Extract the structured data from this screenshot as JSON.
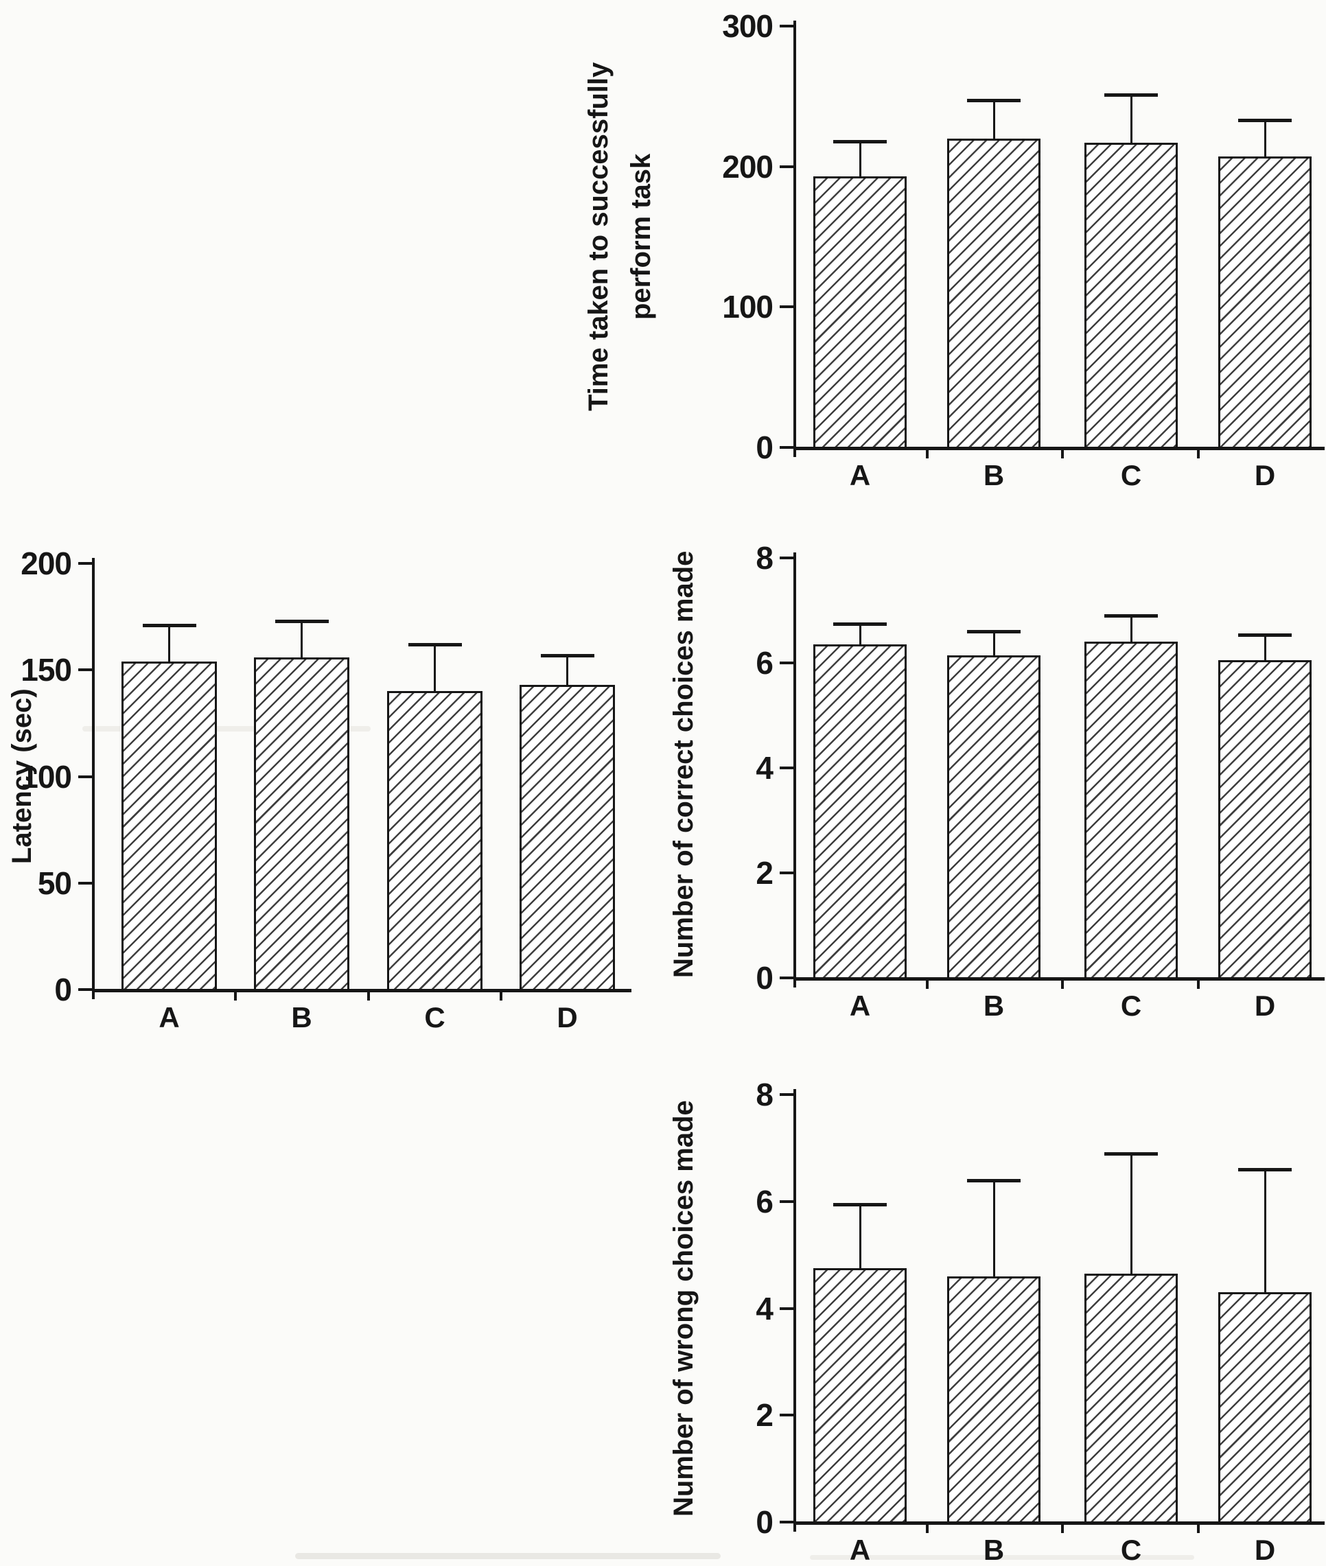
{
  "figure": {
    "background": "#fbfbf9",
    "ink": "#161616",
    "bar_fill": "white with black diagonal hatch",
    "error_bars": "upper-only with horizontal caps",
    "grid": false,
    "legend": "none"
  },
  "chart_data": [
    {
      "id": "time_taken",
      "type": "bar",
      "ylabel": "Time taken to successfully perform task",
      "ylabel_lines": [
        "Time taken to successfully",
        "perform task"
      ],
      "xlabel": "",
      "categories": [
        "A",
        "B",
        "C",
        "D"
      ],
      "values": [
        193,
        220,
        217,
        207
      ],
      "errors_plus": [
        25,
        27,
        34,
        26
      ],
      "ylim": [
        0,
        300
      ],
      "yticks": [
        0,
        100,
        200,
        300
      ],
      "grid": false,
      "legend": "none"
    },
    {
      "id": "latency",
      "type": "bar",
      "ylabel": "Latency (sec)",
      "xlabel": "",
      "categories": [
        "A",
        "B",
        "C",
        "D"
      ],
      "values": [
        154,
        156,
        140,
        143
      ],
      "errors_plus": [
        17,
        17,
        22,
        14
      ],
      "ylim": [
        0,
        200
      ],
      "yticks": [
        0,
        50,
        100,
        150,
        200
      ],
      "grid": false,
      "legend": "none"
    },
    {
      "id": "correct_choices",
      "type": "bar",
      "ylabel": "Number of correct choices made",
      "xlabel": "",
      "categories": [
        "A",
        "B",
        "C",
        "D"
      ],
      "values": [
        6.35,
        6.15,
        6.4,
        6.05
      ],
      "errors_plus": [
        0.4,
        0.45,
        0.5,
        0.48
      ],
      "ylim": [
        0,
        8
      ],
      "yticks": [
        0,
        2,
        4,
        6,
        8
      ],
      "grid": false,
      "legend": "none"
    },
    {
      "id": "wrong_choices",
      "type": "bar",
      "ylabel": "Number of wrong choices made",
      "xlabel": "",
      "categories": [
        "A",
        "B",
        "C",
        "D"
      ],
      "values": [
        4.75,
        4.6,
        4.65,
        4.3
      ],
      "errors_plus": [
        1.2,
        1.8,
        2.25,
        2.3
      ],
      "ylim": [
        0,
        8
      ],
      "yticks": [
        0,
        2,
        4,
        6,
        8
      ],
      "grid": false,
      "legend": "none"
    }
  ]
}
